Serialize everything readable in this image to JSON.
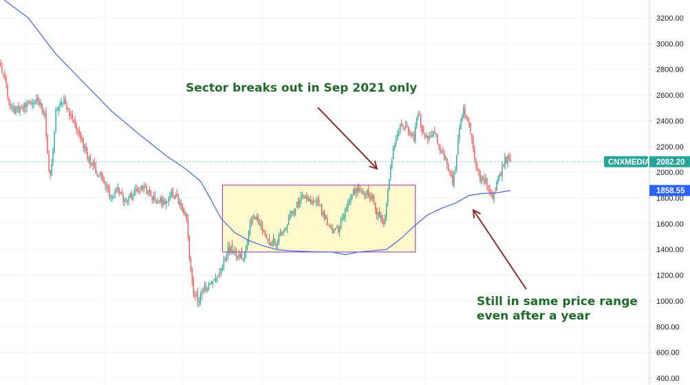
{
  "chart_data": {
    "type": "candlestick",
    "title": "",
    "xlabel": "",
    "ylabel": "",
    "y_axis_position": "right",
    "ylim": [
      360,
      3360
    ],
    "y_ticks": [
      "3200.00",
      "3000.00",
      "2800.00",
      "2600.00",
      "2400.00",
      "2200.00",
      "2000.00",
      "1800.00",
      "1600.00",
      "1400.00",
      "1200.00",
      "1000.00",
      "800.00",
      "600.00",
      "400.00"
    ],
    "y_tick_values": [
      3200,
      3000,
      2800,
      2600,
      2400,
      2200,
      2000,
      1800,
      1600,
      1400,
      1200,
      1000,
      800,
      600,
      400
    ],
    "grid": true,
    "colors": {
      "up": "#26a69a",
      "down": "#ef5350",
      "ma": "#4a6fe3",
      "box_fill": "#fff9cc",
      "box_stroke": "#9c27b0",
      "arrow": "#8b2a2a",
      "annotation": "#1e6b2a",
      "price_tag": "#26a69a",
      "ma_tag": "#2962ff",
      "price_line": "#26a69a"
    },
    "price_keyframes": [
      [
        0,
        2860
      ],
      [
        3,
        2720
      ],
      [
        7,
        2500
      ],
      [
        12,
        2480
      ],
      [
        20,
        2520
      ],
      [
        27,
        2570
      ],
      [
        32,
        2460
      ],
      [
        35,
        1980
      ],
      [
        37,
        2050
      ],
      [
        40,
        2460
      ],
      [
        45,
        2560
      ],
      [
        50,
        2450
      ],
      [
        55,
        2350
      ],
      [
        60,
        2200
      ],
      [
        65,
        2080
      ],
      [
        70,
        2000
      ],
      [
        75,
        1930
      ],
      [
        80,
        1790
      ],
      [
        85,
        1860
      ],
      [
        90,
        1780
      ],
      [
        95,
        1820
      ],
      [
        100,
        1870
      ],
      [
        105,
        1870
      ],
      [
        110,
        1800
      ],
      [
        115,
        1760
      ],
      [
        120,
        1790
      ],
      [
        125,
        1820
      ],
      [
        130,
        1760
      ],
      [
        135,
        1620
      ],
      [
        137,
        1340
      ],
      [
        140,
        1060
      ],
      [
        143,
        1000
      ],
      [
        148,
        1100
      ],
      [
        153,
        1140
      ],
      [
        158,
        1200
      ],
      [
        162,
        1330
      ],
      [
        165,
        1400
      ],
      [
        170,
        1390
      ],
      [
        175,
        1340
      ],
      [
        178,
        1400
      ],
      [
        182,
        1650
      ],
      [
        186,
        1660
      ],
      [
        190,
        1560
      ],
      [
        195,
        1450
      ],
      [
        200,
        1460
      ],
      [
        205,
        1540
      ],
      [
        210,
        1660
      ],
      [
        215,
        1740
      ],
      [
        220,
        1820
      ],
      [
        225,
        1760
      ],
      [
        230,
        1760
      ],
      [
        235,
        1660
      ],
      [
        240,
        1540
      ],
      [
        245,
        1560
      ],
      [
        250,
        1700
      ],
      [
        255,
        1840
      ],
      [
        260,
        1880
      ],
      [
        265,
        1840
      ],
      [
        270,
        1780
      ],
      [
        275,
        1640
      ],
      [
        278,
        1620
      ],
      [
        280,
        1760
      ],
      [
        282,
        1960
      ],
      [
        285,
        2180
      ],
      [
        290,
        2380
      ],
      [
        295,
        2340
      ],
      [
        300,
        2260
      ],
      [
        303,
        2480
      ],
      [
        306,
        2320
      ],
      [
        310,
        2260
      ],
      [
        315,
        2300
      ],
      [
        320,
        2160
      ],
      [
        325,
        2040
      ],
      [
        328,
        1920
      ],
      [
        330,
        2040
      ],
      [
        333,
        2320
      ],
      [
        336,
        2480
      ],
      [
        339,
        2400
      ],
      [
        342,
        2240
      ],
      [
        345,
        2040
      ],
      [
        348,
        1960
      ],
      [
        352,
        1940
      ],
      [
        355,
        1840
      ],
      [
        358,
        1820
      ],
      [
        360,
        1920
      ],
      [
        363,
        2000
      ],
      [
        366,
        2100
      ],
      [
        369,
        2100
      ],
      [
        370,
        2082
      ]
    ],
    "price_noise": 45,
    "last_price_label": "2082.20",
    "ticker_label": "CNXMEDIA",
    "moving_average": {
      "label": "1858.55",
      "points": [
        [
          0,
          3360
        ],
        [
          20,
          3200
        ],
        [
          40,
          2920
        ],
        [
          60,
          2700
        ],
        [
          80,
          2480
        ],
        [
          100,
          2300
        ],
        [
          120,
          2130
        ],
        [
          135,
          2020
        ],
        [
          145,
          1930
        ],
        [
          152,
          1800
        ],
        [
          160,
          1640
        ],
        [
          170,
          1530
        ],
        [
          180,
          1470
        ],
        [
          190,
          1430
        ],
        [
          200,
          1400
        ],
        [
          210,
          1390
        ],
        [
          220,
          1385
        ],
        [
          230,
          1382
        ],
        [
          240,
          1380
        ],
        [
          250,
          1360
        ],
        [
          260,
          1380
        ],
        [
          270,
          1390
        ],
        [
          280,
          1400
        ],
        [
          290,
          1480
        ],
        [
          300,
          1580
        ],
        [
          310,
          1670
        ],
        [
          320,
          1720
        ],
        [
          330,
          1760
        ],
        [
          340,
          1820
        ],
        [
          350,
          1836
        ],
        [
          360,
          1840
        ],
        [
          370,
          1858
        ]
      ]
    },
    "annotations": [
      {
        "text": "Sector breaks out in Sep 2021 only"
      },
      {
        "text": "Still in same price range"
      },
      {
        "text": "even after a year"
      }
    ],
    "range_box": {
      "x_start": 161,
      "x_end": 301,
      "y_low": 1380,
      "y_high": 1900
    }
  }
}
